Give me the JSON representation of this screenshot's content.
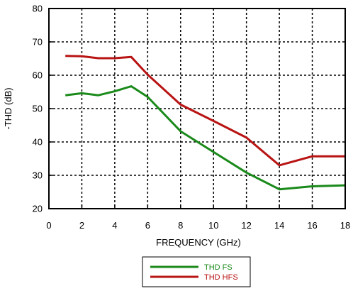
{
  "chart_data": {
    "type": "line",
    "xlabel": "FREQUENCY (GHz)",
    "ylabel": "-THD (dB)",
    "xlim": [
      0,
      18
    ],
    "ylim": [
      20,
      80
    ],
    "xticks": [
      0,
      2,
      4,
      6,
      8,
      10,
      12,
      14,
      16,
      18
    ],
    "yticks": [
      20,
      30,
      40,
      50,
      60,
      70,
      80
    ],
    "grid": true,
    "legend_position": "bottom-center",
    "series": [
      {
        "name": "THD FS",
        "color": "#1a8a1a",
        "x": [
          1,
          2,
          3,
          4,
          5,
          6,
          8,
          10,
          12,
          14,
          16,
          18
        ],
        "y": [
          54,
          54.6,
          54,
          55.2,
          56.7,
          53.5,
          43.2,
          37,
          30.8,
          25.8,
          26.7,
          27
        ]
      },
      {
        "name": "THD HFS",
        "color": "#b81414",
        "x": [
          1,
          2,
          3,
          4,
          5,
          6,
          8,
          10,
          12,
          14,
          16,
          18
        ],
        "y": [
          65.8,
          65.7,
          65.1,
          65.1,
          65.5,
          60.2,
          51.2,
          46.3,
          41.3,
          33,
          35.7,
          35.7
        ]
      }
    ]
  }
}
